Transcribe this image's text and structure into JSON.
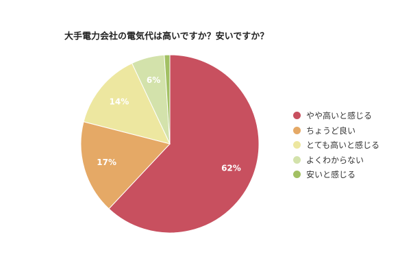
{
  "chart_data": {
    "type": "pie",
    "title": "大手電力会社の電気代は高いですか？安いですか？",
    "slices": [
      {
        "name": "やや高いと感じる",
        "value": 62,
        "label": "62%",
        "color": "#c8505f"
      },
      {
        "name": "ちょうど良い",
        "value": 17,
        "label": "17%",
        "color": "#e5a966"
      },
      {
        "name": "とても高いと感じる",
        "value": 14,
        "label": "14%",
        "color": "#ede7a0"
      },
      {
        "name": "よくわからない",
        "value": 6,
        "label": "6%",
        "color": "#d3e2ab"
      },
      {
        "name": "安いと感じる",
        "value": 1,
        "label": "",
        "color": "#a2c063"
      }
    ],
    "legend_position": "right"
  }
}
